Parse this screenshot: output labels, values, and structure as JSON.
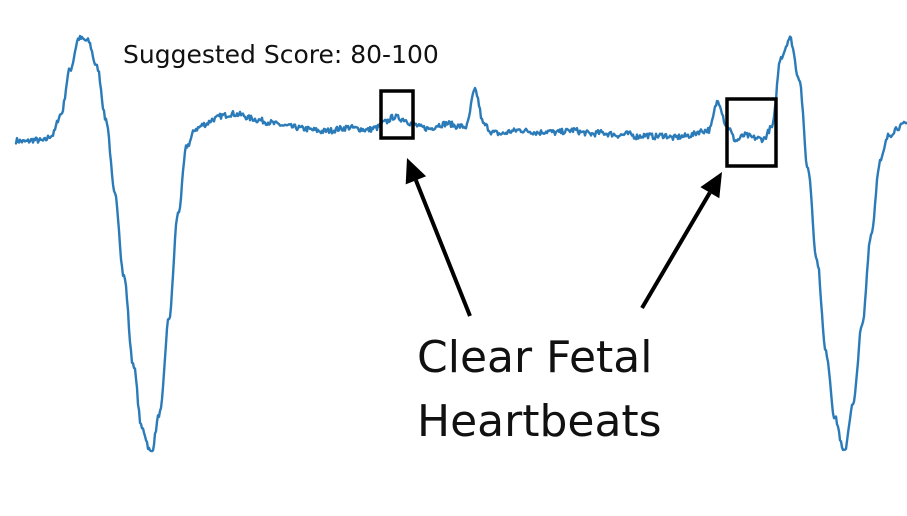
{
  "chart_data": {
    "type": "line",
    "title": "",
    "xlabel": "",
    "ylabel": "",
    "grid": false,
    "score_text": "Suggested Score: 80-100",
    "annotation": {
      "lines": [
        "Clear Fetal",
        "Heartbeats"
      ],
      "highlighted_beats": 2
    },
    "series": [
      {
        "color": "#2b7bb9",
        "values": [
          -0.4,
          -0.45,
          -0.38,
          -0.42,
          -0.2,
          0.6,
          2.3,
          3.5,
          3.4,
          2.4,
          0.4,
          -2.5,
          -5.6,
          -8.9,
          -11.4,
          -12.3,
          -10.8,
          -7.2,
          -3.2,
          -0.6,
          0.05,
          0.22,
          0.42,
          0.55,
          0.62,
          0.58,
          0.45,
          0.38,
          0.3,
          0.22,
          0.15,
          0.1,
          0.05,
          0.0,
          -0.05,
          -0.02,
          0.05,
          0.1,
          0.05,
          0.0,
          0.08,
          0.3,
          0.5,
          0.42,
          0.25,
          0.1,
          0.05,
          0.2,
          0.25,
          0.15,
          0.12,
          1.5,
          0.2,
          -0.1,
          -0.15,
          -0.05,
          0.0,
          -0.05,
          -0.1,
          -0.05,
          -0.1,
          -0.05,
          0.0,
          -0.1,
          -0.15,
          -0.1,
          -0.15,
          -0.2,
          -0.15,
          -0.25,
          -0.2,
          -0.25,
          -0.2,
          -0.3,
          -0.25,
          -0.2,
          -0.05,
          0.0,
          1.1,
          0.15,
          -0.4,
          -0.2,
          -0.3,
          -0.35,
          0.1,
          2.8,
          3.5,
          2.0,
          -1.5,
          -5.0,
          -8.5,
          -11.0,
          -12.3,
          -10.5,
          -7.5,
          -4.0,
          -1.2,
          -0.2,
          0.1,
          0.25
        ]
      }
    ]
  }
}
